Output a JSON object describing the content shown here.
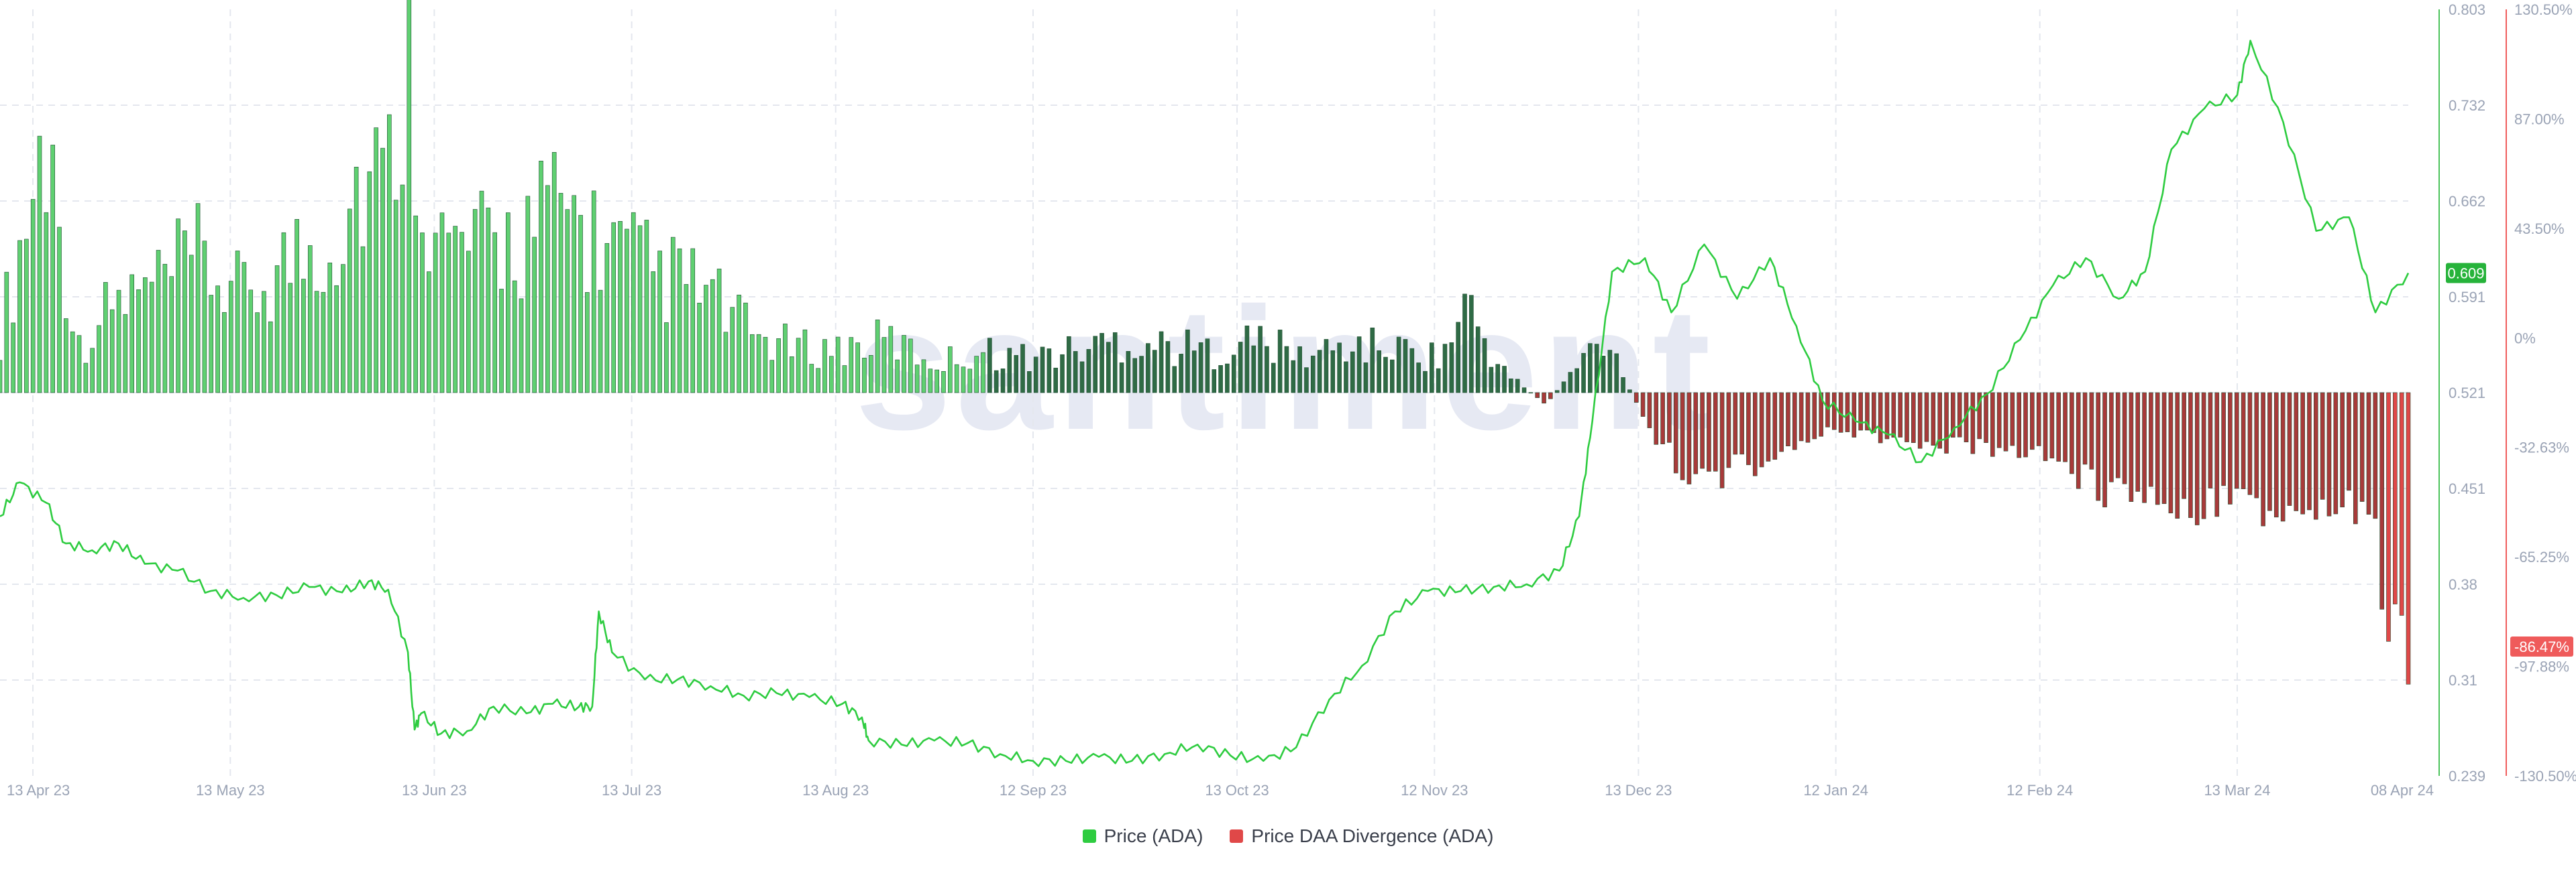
{
  "watermark": "santiment",
  "legend": {
    "price_label": "Price (ADA)",
    "divergence_label": "Price DAA Divergence (ADA)"
  },
  "colors": {
    "price_line": "#2ecc40",
    "bar_positive_light": "#5fd071",
    "bar_positive_dark": "#2f6b45",
    "bar_negative": "#a83a3a",
    "bar_negative_bright": "#e04848",
    "price_badge": "#26b33a",
    "divergence_badge": "#ef5b5b",
    "grid": "#e4e7ee",
    "left_axis": "#4cc45c",
    "right_axis": "#ef5b5b"
  },
  "chart_data": {
    "type": "bar+line",
    "x_ticks": [
      "13 Apr 23",
      "13 May 23",
      "13 Jun 23",
      "13 Jul 23",
      "13 Aug 23",
      "12 Sep 23",
      "13 Oct 23",
      "12 Nov 23",
      "13 Dec 23",
      "12 Jan 24",
      "12 Feb 24",
      "13 Mar 24",
      "08 Apr 24"
    ],
    "price_axis": {
      "ticks": [
        "0.803",
        "0.732",
        "0.662",
        "0.591",
        "0.521",
        "0.451",
        "0.38",
        "0.31",
        "0.239"
      ],
      "range": [
        0.239,
        0.803
      ],
      "current_label": "0.609",
      "current_value": 0.609
    },
    "divergence_axis": {
      "ticks": [
        "130.50%",
        "87.00%",
        "43.50%",
        "0%",
        "-32.63%",
        "-65.25%",
        "-97.88%",
        "-130.50%"
      ],
      "range": [
        -130.5,
        130.5
      ],
      "current_label": "-86.47%",
      "current_value": -86.47
    },
    "series": [
      {
        "name": "Price (ADA)",
        "type": "line",
        "x": [
          "2023-04-08",
          "2023-04-11",
          "2023-04-15",
          "2023-04-18",
          "2023-04-22",
          "2023-04-26",
          "2023-04-30",
          "2023-05-05",
          "2023-05-10",
          "2023-05-15",
          "2023-05-20",
          "2023-05-25",
          "2023-05-30",
          "2023-06-03",
          "2023-06-06",
          "2023-06-09",
          "2023-06-10",
          "2023-06-11",
          "2023-06-14",
          "2023-06-18",
          "2023-06-22",
          "2023-06-27",
          "2023-07-01",
          "2023-07-05",
          "2023-07-07",
          "2023-07-08",
          "2023-07-10",
          "2023-07-15",
          "2023-07-20",
          "2023-07-25",
          "2023-07-30",
          "2023-08-04",
          "2023-08-09",
          "2023-08-14",
          "2023-08-17",
          "2023-08-18",
          "2023-08-23",
          "2023-08-28",
          "2023-09-02",
          "2023-09-07",
          "2023-09-12",
          "2023-09-17",
          "2023-09-22",
          "2023-09-27",
          "2023-10-02",
          "2023-10-07",
          "2023-10-12",
          "2023-10-17",
          "2023-10-22",
          "2023-10-27",
          "2023-11-01",
          "2023-11-06",
          "2023-11-11",
          "2023-11-16",
          "2023-11-21",
          "2023-11-26",
          "2023-12-01",
          "2023-12-04",
          "2023-12-06",
          "2023-12-09",
          "2023-12-14",
          "2023-12-18",
          "2023-12-23",
          "2023-12-28",
          "2024-01-02",
          "2024-01-06",
          "2024-01-10",
          "2024-01-15",
          "2024-01-20",
          "2024-01-25",
          "2024-01-30",
          "2024-02-04",
          "2024-02-09",
          "2024-02-14",
          "2024-02-19",
          "2024-02-24",
          "2024-02-28",
          "2024-03-03",
          "2024-03-08",
          "2024-03-13",
          "2024-03-15",
          "2024-03-20",
          "2024-03-25",
          "2024-03-30",
          "2024-04-03",
          "2024-04-08"
        ],
        "values": [
          0.43,
          0.455,
          0.44,
          0.41,
          0.405,
          0.41,
          0.395,
          0.39,
          0.375,
          0.37,
          0.372,
          0.378,
          0.374,
          0.382,
          0.376,
          0.33,
          0.273,
          0.285,
          0.27,
          0.272,
          0.29,
          0.285,
          0.292,
          0.29,
          0.29,
          0.36,
          0.33,
          0.31,
          0.31,
          0.305,
          0.298,
          0.3,
          0.297,
          0.292,
          0.282,
          0.265,
          0.262,
          0.265,
          0.263,
          0.255,
          0.25,
          0.25,
          0.253,
          0.25,
          0.255,
          0.262,
          0.254,
          0.25,
          0.26,
          0.295,
          0.32,
          0.36,
          0.375,
          0.375,
          0.378,
          0.38,
          0.39,
          0.43,
          0.5,
          0.61,
          0.62,
          0.58,
          0.63,
          0.59,
          0.62,
          0.57,
          0.515,
          0.5,
          0.49,
          0.47,
          0.495,
          0.52,
          0.56,
          0.6,
          0.62,
          0.59,
          0.61,
          0.7,
          0.73,
          0.74,
          0.78,
          0.72,
          0.64,
          0.65,
          0.58,
          0.609
        ]
      },
      {
        "name": "Price DAA Divergence (ADA)",
        "type": "bar",
        "x": [
          "2023-04-08",
          "2023-04-15",
          "2023-04-20",
          "2023-04-25",
          "2023-05-01",
          "2023-05-08",
          "2023-05-15",
          "2023-05-22",
          "2023-05-29",
          "2023-06-02",
          "2023-06-06",
          "2023-06-09",
          "2023-06-13",
          "2023-06-20",
          "2023-06-27",
          "2023-07-03",
          "2023-07-10",
          "2023-07-17",
          "2023-07-24",
          "2023-07-31",
          "2023-08-07",
          "2023-08-14",
          "2023-08-21",
          "2023-08-28",
          "2023-09-04",
          "2023-09-11",
          "2023-09-18",
          "2023-09-25",
          "2023-10-02",
          "2023-10-09",
          "2023-10-16",
          "2023-10-23",
          "2023-10-30",
          "2023-11-06",
          "2023-11-13",
          "2023-11-17",
          "2023-11-22",
          "2023-11-29",
          "2023-12-04",
          "2023-12-08",
          "2023-12-15",
          "2023-12-22",
          "2023-12-29",
          "2024-01-05",
          "2024-01-12",
          "2024-01-19",
          "2024-01-26",
          "2024-02-02",
          "2024-02-09",
          "2024-02-16",
          "2024-02-23",
          "2024-03-01",
          "2024-03-08",
          "2024-03-15",
          "2024-03-22",
          "2024-03-29",
          "2024-04-03",
          "2024-04-05",
          "2024-04-08"
        ],
        "values": [
          20,
          88,
          15,
          30,
          35,
          45,
          32,
          45,
          55,
          75,
          70,
          130,
          50,
          48,
          55,
          62,
          48,
          40,
          35,
          20,
          15,
          15,
          18,
          10,
          14,
          12,
          14,
          18,
          16,
          14,
          18,
          12,
          16,
          15,
          12,
          30,
          8,
          -4,
          10,
          20,
          -15,
          -30,
          -25,
          -20,
          -12,
          -15,
          -20,
          -18,
          -20,
          -25,
          -35,
          -35,
          -40,
          -38,
          -45,
          -38,
          -45,
          -85,
          -86.47
        ]
      }
    ]
  }
}
